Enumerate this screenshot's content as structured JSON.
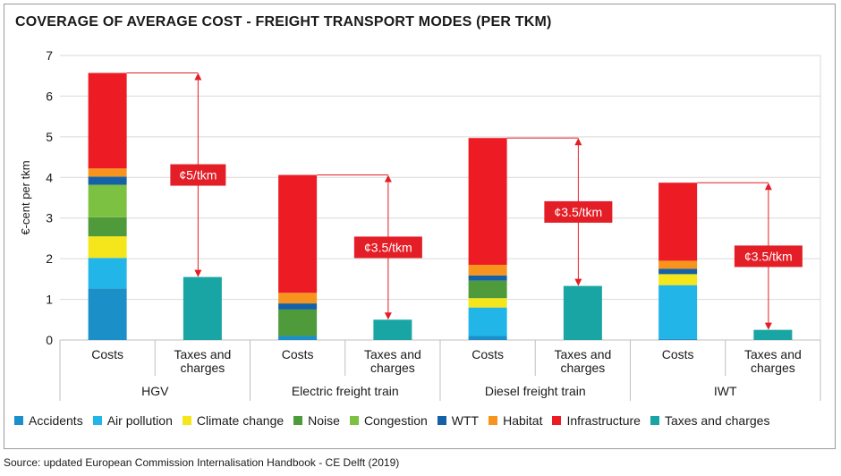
{
  "title": "COVERAGE OF AVERAGE COST - FREIGHT TRANSPORT MODES (PER TKM)",
  "source": "Source: updated European Commission Internalisation Handbook - CE Delft (2019)",
  "chart_data": {
    "type": "bar",
    "stacked": true,
    "ylabel": "€-cent per tkm",
    "ylim": [
      0,
      7
    ],
    "yticks": [
      0,
      1,
      2,
      3,
      4,
      5,
      6,
      7
    ],
    "grid": true,
    "legend_position": "bottom",
    "groups": [
      "HGV",
      "Electric freight train",
      "Diesel freight train",
      "IWT"
    ],
    "bar_labels": [
      "Costs",
      "Taxes and charges"
    ],
    "series": [
      {
        "name": "Accidents",
        "color": "#1a8fc8",
        "costs": [
          1.27,
          0.1,
          0.1,
          0.03
        ]
      },
      {
        "name": "Air pollution",
        "color": "#22b5e8",
        "costs": [
          0.75,
          0.0,
          0.7,
          1.32
        ]
      },
      {
        "name": "Climate change",
        "color": "#f5e61c",
        "costs": [
          0.53,
          0.0,
          0.23,
          0.27
        ]
      },
      {
        "name": "Noise",
        "color": "#4f9a3b",
        "costs": [
          0.47,
          0.65,
          0.43,
          0.0
        ]
      },
      {
        "name": "Congestion",
        "color": "#7cc142",
        "costs": [
          0.8,
          0.0,
          0.0,
          0.0
        ]
      },
      {
        "name": "WTT",
        "color": "#1461a8",
        "costs": [
          0.2,
          0.15,
          0.13,
          0.13
        ]
      },
      {
        "name": "Habitat",
        "color": "#f7941d",
        "costs": [
          0.2,
          0.26,
          0.26,
          0.2
        ]
      },
      {
        "name": "Infrastructure",
        "color": "#ed1c24",
        "costs": [
          2.35,
          2.9,
          3.12,
          1.92
        ]
      },
      {
        "name": "Taxes and charges",
        "color": "#1aa5a5",
        "taxes": [
          1.55,
          0.5,
          1.33,
          0.25
        ]
      }
    ],
    "totals": [
      6.57,
      4.06,
      4.97,
      3.87
    ],
    "annotations": [
      {
        "group": "HGV",
        "label": "¢5/tkm"
      },
      {
        "group": "Electric freight train",
        "label": "¢3.5/tkm"
      },
      {
        "group": "Diesel freight train",
        "label": "¢3.5/tkm"
      },
      {
        "group": "IWT",
        "label": "¢3.5/tkm"
      }
    ],
    "gap_color": "#e31e26",
    "taxes_label_lines": [
      "Taxes and",
      "charges"
    ]
  }
}
